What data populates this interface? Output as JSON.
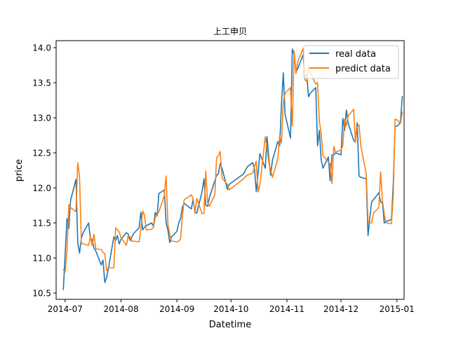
{
  "chart_data": {
    "type": "line",
    "title": "上工申贝",
    "xlabel": "Datetime",
    "ylabel": "price",
    "xlim": [
      "2014-06-26",
      "2015-01-05"
    ],
    "ylim": [
      10.41,
      14.1
    ],
    "x_ticks": [
      "2014-07-01",
      "2014-08-01",
      "2014-09-01",
      "2014-10-01",
      "2014-11-01",
      "2014-12-01",
      "2015-01-01"
    ],
    "x_tick_labels": [
      "2014-07",
      "2014-08",
      "2014-09",
      "2014-10",
      "2014-11",
      "2014-12",
      "2015-01"
    ],
    "y_ticks": [
      10.5,
      11.0,
      11.5,
      12.0,
      12.5,
      13.0,
      13.5,
      14.0
    ],
    "y_tick_labels": [
      "10.5",
      "11.0",
      "11.5",
      "12.0",
      "12.5",
      "13.0",
      "13.5",
      "14.0"
    ],
    "grid": false,
    "legend_position": "top-right",
    "series": [
      {
        "name": "real data",
        "color": "#1f77b4",
        "points": [
          [
            "2014-06-30",
            10.55
          ],
          [
            "2014-07-01",
            11.05
          ],
          [
            "2014-07-02",
            11.56
          ],
          [
            "2014-07-03",
            11.42
          ],
          [
            "2014-07-04",
            11.82
          ],
          [
            "2014-07-07",
            12.12
          ],
          [
            "2014-07-08",
            11.22
          ],
          [
            "2014-07-09",
            11.07
          ],
          [
            "2014-07-10",
            11.28
          ],
          [
            "2014-07-11",
            11.36
          ],
          [
            "2014-07-14",
            11.5
          ],
          [
            "2014-07-15",
            11.28
          ],
          [
            "2014-07-16",
            11.26
          ],
          [
            "2014-07-17",
            11.14
          ],
          [
            "2014-07-18",
            11.1
          ],
          [
            "2014-07-21",
            10.9
          ],
          [
            "2014-07-22",
            10.97
          ],
          [
            "2014-07-23",
            10.65
          ],
          [
            "2014-07-24",
            10.72
          ],
          [
            "2014-07-25",
            10.85
          ],
          [
            "2014-07-28",
            11.3
          ],
          [
            "2014-07-29",
            11.25
          ],
          [
            "2014-07-30",
            11.32
          ],
          [
            "2014-07-31",
            11.2
          ],
          [
            "2014-08-01",
            11.27
          ],
          [
            "2014-08-04",
            11.36
          ],
          [
            "2014-08-05",
            11.34
          ],
          [
            "2014-08-06",
            11.25
          ],
          [
            "2014-08-07",
            11.3
          ],
          [
            "2014-08-08",
            11.35
          ],
          [
            "2014-08-11",
            11.43
          ],
          [
            "2014-08-12",
            11.65
          ],
          [
            "2014-08-13",
            11.4
          ],
          [
            "2014-08-14",
            11.44
          ],
          [
            "2014-08-15",
            11.46
          ],
          [
            "2014-08-18",
            11.5
          ],
          [
            "2014-08-19",
            11.45
          ],
          [
            "2014-08-20",
            11.65
          ],
          [
            "2014-08-21",
            11.6
          ],
          [
            "2014-08-22",
            11.92
          ],
          [
            "2014-08-25",
            11.97
          ],
          [
            "2014-08-26",
            11.5
          ],
          [
            "2014-08-27",
            11.4
          ],
          [
            "2014-08-28",
            11.22
          ],
          [
            "2014-08-29",
            11.3
          ],
          [
            "2014-09-01",
            11.38
          ],
          [
            "2014-09-02",
            11.5
          ],
          [
            "2014-09-03",
            11.56
          ],
          [
            "2014-09-04",
            11.72
          ],
          [
            "2014-09-05",
            11.78
          ],
          [
            "2014-09-09",
            11.7
          ],
          [
            "2014-09-10",
            11.84
          ],
          [
            "2014-09-11",
            11.65
          ],
          [
            "2014-09-12",
            11.64
          ],
          [
            "2014-09-15",
            11.95
          ],
          [
            "2014-09-16",
            12.13
          ],
          [
            "2014-09-17",
            11.75
          ],
          [
            "2014-09-18",
            11.74
          ],
          [
            "2014-09-19",
            11.86
          ],
          [
            "2014-09-22",
            12.1
          ],
          [
            "2014-09-23",
            12.18
          ],
          [
            "2014-09-24",
            12.2
          ],
          [
            "2014-09-25",
            12.35
          ],
          [
            "2014-09-26",
            12.28
          ],
          [
            "2014-09-29",
            11.98
          ],
          [
            "2014-09-30",
            12.05
          ],
          [
            "2014-10-08",
            12.2
          ],
          [
            "2014-10-09",
            12.25
          ],
          [
            "2014-10-10",
            12.3
          ],
          [
            "2014-10-13",
            12.36
          ],
          [
            "2014-10-14",
            12.28
          ],
          [
            "2014-10-15",
            11.95
          ],
          [
            "2014-10-16",
            12.2
          ],
          [
            "2014-10-17",
            12.49
          ],
          [
            "2014-10-20",
            12.28
          ],
          [
            "2014-10-21",
            12.73
          ],
          [
            "2014-10-22",
            12.42
          ],
          [
            "2014-10-23",
            12.18
          ],
          [
            "2014-10-24",
            12.4
          ],
          [
            "2014-10-27",
            12.66
          ],
          [
            "2014-10-28",
            12.6
          ],
          [
            "2014-10-29",
            13.2
          ],
          [
            "2014-10-30",
            13.64
          ],
          [
            "2014-10-31",
            13.05
          ],
          [
            "2014-11-03",
            12.71
          ],
          [
            "2014-11-04",
            13.98
          ],
          [
            "2014-11-05",
            13.9
          ],
          [
            "2014-11-06",
            13.65
          ],
          [
            "2014-11-07",
            13.7
          ],
          [
            "2014-11-10",
            13.9
          ],
          [
            "2014-11-11",
            13.55
          ],
          [
            "2014-11-12",
            13.62
          ],
          [
            "2014-11-13",
            13.3
          ],
          [
            "2014-11-14",
            13.35
          ],
          [
            "2014-11-17",
            13.43
          ],
          [
            "2014-11-18",
            12.6
          ],
          [
            "2014-11-19",
            12.82
          ],
          [
            "2014-11-20",
            12.4
          ],
          [
            "2014-11-21",
            12.28
          ],
          [
            "2014-11-24",
            12.44
          ],
          [
            "2014-11-25",
            12.1
          ],
          [
            "2014-11-26",
            12.47
          ],
          [
            "2014-11-27",
            12.47
          ],
          [
            "2014-11-28",
            12.5
          ],
          [
            "2014-12-01",
            12.47
          ],
          [
            "2014-12-02",
            12.99
          ],
          [
            "2014-12-03",
            12.82
          ],
          [
            "2014-12-04",
            13.11
          ],
          [
            "2014-12-05",
            12.92
          ],
          [
            "2014-12-08",
            12.68
          ],
          [
            "2014-12-09",
            12.65
          ],
          [
            "2014-12-10",
            12.93
          ],
          [
            "2014-12-11",
            12.17
          ],
          [
            "2014-12-12",
            12.15
          ],
          [
            "2014-12-15",
            12.13
          ],
          [
            "2014-12-16",
            11.32
          ],
          [
            "2014-12-17",
            11.58
          ],
          [
            "2014-12-18",
            11.8
          ],
          [
            "2014-12-19",
            11.83
          ],
          [
            "2014-12-22",
            11.93
          ],
          [
            "2014-12-23",
            11.8
          ],
          [
            "2014-12-24",
            11.78
          ],
          [
            "2014-12-25",
            11.5
          ],
          [
            "2014-12-26",
            11.52
          ],
          [
            "2014-12-29",
            11.55
          ],
          [
            "2014-12-30",
            12.07
          ],
          [
            "2014-12-31",
            12.88
          ],
          [
            "2015-01-01",
            12.88
          ],
          [
            "2015-01-02",
            12.9
          ],
          [
            "2015-01-03",
            12.95
          ],
          [
            "2015-01-04",
            13.3
          ]
        ]
      },
      {
        "name": "predict data",
        "color": "#ff7f0e",
        "points": [
          [
            "2014-06-30",
            10.83
          ],
          [
            "2014-07-01",
            10.8
          ],
          [
            "2014-07-02",
            11.1
          ],
          [
            "2014-07-03",
            11.76
          ],
          [
            "2014-07-04",
            11.72
          ],
          [
            "2014-07-07",
            11.66
          ],
          [
            "2014-07-08",
            12.36
          ],
          [
            "2014-07-09",
            12.15
          ],
          [
            "2014-07-10",
            11.22
          ],
          [
            "2014-07-11",
            11.2
          ],
          [
            "2014-07-14",
            11.18
          ],
          [
            "2014-07-15",
            11.3
          ],
          [
            "2014-07-16",
            11.18
          ],
          [
            "2014-07-17",
            11.34
          ],
          [
            "2014-07-18",
            11.13
          ],
          [
            "2014-07-21",
            11.12
          ],
          [
            "2014-07-22",
            11.08
          ],
          [
            "2014-07-23",
            11.06
          ],
          [
            "2014-07-24",
            10.82
          ],
          [
            "2014-07-25",
            10.86
          ],
          [
            "2014-07-28",
            10.86
          ],
          [
            "2014-07-29",
            11.43
          ],
          [
            "2014-07-30",
            11.4
          ],
          [
            "2014-07-31",
            11.37
          ],
          [
            "2014-08-01",
            11.29
          ],
          [
            "2014-08-04",
            11.18
          ],
          [
            "2014-08-05",
            11.32
          ],
          [
            "2014-08-06",
            11.3
          ],
          [
            "2014-08-07",
            11.24
          ],
          [
            "2014-08-08",
            11.24
          ],
          [
            "2014-08-11",
            11.23
          ],
          [
            "2014-08-12",
            11.42
          ],
          [
            "2014-08-13",
            11.67
          ],
          [
            "2014-08-14",
            11.61
          ],
          [
            "2014-08-15",
            11.4
          ],
          [
            "2014-08-18",
            11.41
          ],
          [
            "2014-08-19",
            11.44
          ],
          [
            "2014-08-20",
            11.58
          ],
          [
            "2014-08-21",
            11.62
          ],
          [
            "2014-08-22",
            11.66
          ],
          [
            "2014-08-25",
            11.89
          ],
          [
            "2014-08-26",
            12.17
          ],
          [
            "2014-08-27",
            11.48
          ],
          [
            "2014-08-28",
            11.34
          ],
          [
            "2014-08-29",
            11.24
          ],
          [
            "2014-09-01",
            11.23
          ],
          [
            "2014-09-02",
            11.24
          ],
          [
            "2014-09-03",
            11.27
          ],
          [
            "2014-09-04",
            11.58
          ],
          [
            "2014-09-05",
            11.83
          ],
          [
            "2014-09-09",
            11.9
          ],
          [
            "2014-09-10",
            11.84
          ],
          [
            "2014-09-11",
            11.64
          ],
          [
            "2014-09-12",
            11.85
          ],
          [
            "2014-09-15",
            11.63
          ],
          [
            "2014-09-16",
            11.64
          ],
          [
            "2014-09-17",
            12.24
          ],
          [
            "2014-09-18",
            11.79
          ],
          [
            "2014-09-19",
            11.74
          ],
          [
            "2014-09-22",
            11.9
          ],
          [
            "2014-09-23",
            12.43
          ],
          [
            "2014-09-24",
            12.46
          ],
          [
            "2014-09-25",
            12.52
          ],
          [
            "2014-09-26",
            12.14
          ],
          [
            "2014-09-29",
            12.05
          ],
          [
            "2014-09-30",
            11.97
          ],
          [
            "2014-10-08",
            12.13
          ],
          [
            "2014-10-09",
            12.16
          ],
          [
            "2014-10-10",
            12.18
          ],
          [
            "2014-10-13",
            12.21
          ],
          [
            "2014-10-14",
            12.3
          ],
          [
            "2014-10-15",
            12.38
          ],
          [
            "2014-10-16",
            11.94
          ],
          [
            "2014-10-17",
            12.04
          ],
          [
            "2014-10-20",
            12.73
          ],
          [
            "2014-10-21",
            12.56
          ],
          [
            "2014-10-22",
            12.36
          ],
          [
            "2014-10-23",
            12.25
          ],
          [
            "2014-10-24",
            12.15
          ],
          [
            "2014-10-27",
            12.42
          ],
          [
            "2014-10-28",
            12.75
          ],
          [
            "2014-10-29",
            12.64
          ],
          [
            "2014-10-30",
            13.22
          ],
          [
            "2014-10-31",
            13.35
          ],
          [
            "2014-11-03",
            13.43
          ],
          [
            "2014-11-04",
            12.88
          ],
          [
            "2014-11-05",
            13.95
          ],
          [
            "2014-11-06",
            13.63
          ],
          [
            "2014-11-07",
            13.8
          ],
          [
            "2014-11-10",
            13.99
          ],
          [
            "2014-11-11",
            13.54
          ],
          [
            "2014-11-12",
            13.52
          ],
          [
            "2014-11-13",
            13.74
          ],
          [
            "2014-11-14",
            13.64
          ],
          [
            "2014-11-17",
            13.48
          ],
          [
            "2014-11-18",
            13.5
          ],
          [
            "2014-11-19",
            12.95
          ],
          [
            "2014-11-20",
            12.78
          ],
          [
            "2014-11-21",
            12.46
          ],
          [
            "2014-11-24",
            12.37
          ],
          [
            "2014-11-25",
            12.34
          ],
          [
            "2014-11-26",
            12.06
          ],
          [
            "2014-11-27",
            12.59
          ],
          [
            "2014-11-28",
            12.51
          ],
          [
            "2014-12-01",
            12.54
          ],
          [
            "2014-12-02",
            12.6
          ],
          [
            "2014-12-03",
            12.98
          ],
          [
            "2014-12-04",
            12.89
          ],
          [
            "2014-12-05",
            13.03
          ],
          [
            "2014-12-08",
            13.12
          ],
          [
            "2014-12-09",
            12.65
          ],
          [
            "2014-12-10",
            12.87
          ],
          [
            "2014-12-11",
            12.9
          ],
          [
            "2014-12-12",
            12.6
          ],
          [
            "2014-12-15",
            12.2
          ],
          [
            "2014-12-16",
            11.52
          ],
          [
            "2014-12-17",
            11.5
          ],
          [
            "2014-12-18",
            11.5
          ],
          [
            "2014-12-19",
            11.64
          ],
          [
            "2014-12-22",
            11.72
          ],
          [
            "2014-12-23",
            12.23
          ],
          [
            "2014-12-24",
            11.82
          ],
          [
            "2014-12-25",
            11.62
          ],
          [
            "2014-12-26",
            11.5
          ],
          [
            "2014-12-29",
            11.49
          ],
          [
            "2014-12-30",
            11.9
          ],
          [
            "2014-12-31",
            12.98
          ],
          [
            "2015-01-01",
            12.97
          ],
          [
            "2015-01-02",
            12.95
          ],
          [
            "2015-01-03",
            12.92
          ],
          [
            "2015-01-04",
            13.08
          ]
        ]
      }
    ]
  }
}
